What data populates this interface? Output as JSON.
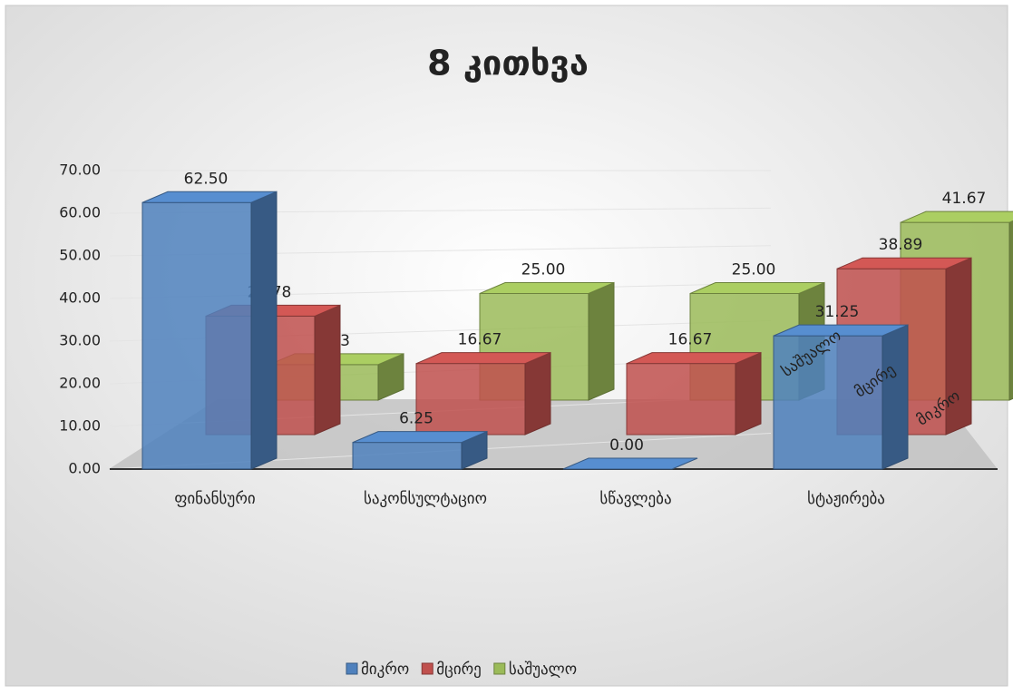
{
  "chart_data": {
    "type": "bar3d",
    "title": "8 კითხვა",
    "categories": [
      "ფინანსური",
      "საკონსულტაციო",
      "სწავლება",
      "სტაჟირება"
    ],
    "series": [
      {
        "name": "მიკრო",
        "color": "#4f81bd",
        "values": [
          62.5,
          6.25,
          0,
          31.25
        ],
        "value_labels": [
          "62.50",
          "6.25",
          "0.00",
          "31.25"
        ]
      },
      {
        "name": "მცირე",
        "color": "#c0504d",
        "values": [
          27.78,
          16.67,
          16.67,
          38.89
        ],
        "value_labels": [
          "27.78",
          "16.67",
          "16.67",
          "38.89"
        ]
      },
      {
        "name": "საშუალო",
        "color": "#9bbb59",
        "values": [
          8.33,
          25,
          25,
          41.67
        ],
        "value_labels": [
          "8.33",
          "25.00",
          "25.00",
          "41.67"
        ]
      }
    ],
    "ylim": [
      0,
      70
    ],
    "yticks": [
      {
        "value": 0,
        "label": "0.00"
      },
      {
        "value": 10,
        "label": "10.00"
      },
      {
        "value": 20,
        "label": "20.00"
      },
      {
        "value": 30,
        "label": "30.00"
      },
      {
        "value": 40,
        "label": "40.00"
      },
      {
        "value": 50,
        "label": "50.00"
      },
      {
        "value": 60,
        "label": "60.00"
      },
      {
        "value": 70,
        "label": "70.00"
      }
    ],
    "grid": true,
    "legend": "bottom"
  }
}
